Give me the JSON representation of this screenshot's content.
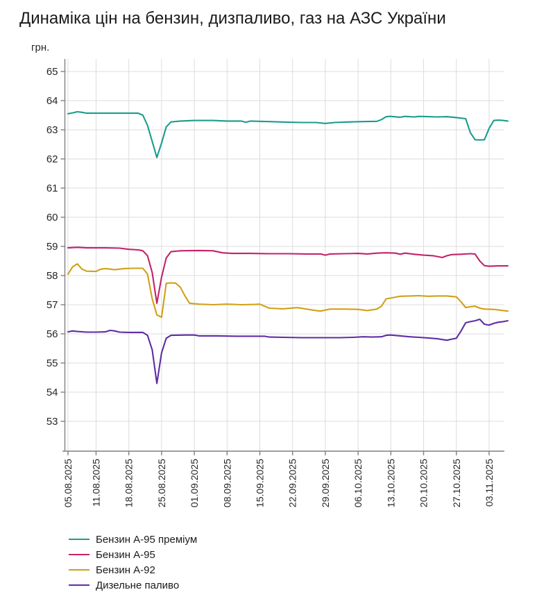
{
  "title": "Динаміка цін на бензин, дизпаливо, газ на АЗС України",
  "y_unit": "грн.",
  "colors": {
    "grid": "#dcdcdc",
    "axis": "#808080",
    "tick_text": "#262626",
    "title_text": "#1a1a1a"
  },
  "chart_data": {
    "type": "line",
    "title": "Динаміка цін на бензин, дизпаливо, газ на АЗС України",
    "xlabel": "",
    "ylabel": "грн.",
    "ylim": [
      52,
      65.5
    ],
    "x_domain_days": [
      0,
      94
    ],
    "x_unit": "days since 05.08.2025",
    "grid": true,
    "legend_position": "bottom-left",
    "y_ticks": [
      53,
      54,
      55,
      56,
      57,
      58,
      59,
      60,
      61,
      62,
      63,
      64,
      65
    ],
    "x_tick_days": [
      0,
      6,
      13,
      20,
      27,
      34,
      41,
      48,
      55,
      62,
      69,
      76,
      83,
      90
    ],
    "x_tick_labels": [
      "05.08.2025",
      "11.08.2025",
      "18.08.2025",
      "25.08.2025",
      "01.09.2025",
      "08.09.2025",
      "15.09.2025",
      "22.09.2025",
      "29.09.2025",
      "06.10.2025",
      "13.10.2025",
      "20.10.2025",
      "27.10.2025",
      "03.11.2025"
    ],
    "series": [
      {
        "id": "benzyn-a95-premium",
        "name": "Бензин А-95 преміум",
        "color": "#1a9c8c",
        "points": [
          [
            0,
            63.55
          ],
          [
            1,
            63.58
          ],
          [
            2,
            63.62
          ],
          [
            3,
            63.6
          ],
          [
            4,
            63.57
          ],
          [
            8,
            63.57
          ],
          [
            12,
            63.57
          ],
          [
            15,
            63.57
          ],
          [
            16,
            63.5
          ],
          [
            17,
            63.15
          ],
          [
            18,
            62.6
          ],
          [
            19,
            62.05
          ],
          [
            20,
            62.55
          ],
          [
            21,
            63.1
          ],
          [
            22,
            63.27
          ],
          [
            24,
            63.3
          ],
          [
            27,
            63.32
          ],
          [
            31,
            63.32
          ],
          [
            34,
            63.3
          ],
          [
            37,
            63.3
          ],
          [
            38,
            63.26
          ],
          [
            39,
            63.3
          ],
          [
            43,
            63.28
          ],
          [
            47,
            63.26
          ],
          [
            50,
            63.25
          ],
          [
            53,
            63.25
          ],
          [
            55,
            63.22
          ],
          [
            57,
            63.25
          ],
          [
            60,
            63.27
          ],
          [
            63,
            63.28
          ],
          [
            66,
            63.29
          ],
          [
            67,
            63.35
          ],
          [
            68,
            63.45
          ],
          [
            69,
            63.46
          ],
          [
            71,
            63.43
          ],
          [
            72,
            63.46
          ],
          [
            74,
            63.44
          ],
          [
            75,
            63.46
          ],
          [
            77,
            63.45
          ],
          [
            79,
            63.44
          ],
          [
            81,
            63.45
          ],
          [
            83,
            63.42
          ],
          [
            84,
            63.4
          ],
          [
            85,
            63.38
          ],
          [
            86,
            62.9
          ],
          [
            87,
            62.66
          ],
          [
            88,
            62.65
          ],
          [
            89,
            62.66
          ],
          [
            90,
            63.05
          ],
          [
            91,
            63.32
          ],
          [
            92,
            63.33
          ],
          [
            93,
            63.32
          ],
          [
            94,
            63.3
          ]
        ]
      },
      {
        "id": "benzyn-a95",
        "name": "Бензин А-95",
        "color": "#c22369",
        "points": [
          [
            0,
            58.95
          ],
          [
            2,
            58.97
          ],
          [
            4,
            58.95
          ],
          [
            8,
            58.95
          ],
          [
            11,
            58.94
          ],
          [
            13,
            58.9
          ],
          [
            15,
            58.88
          ],
          [
            16,
            58.85
          ],
          [
            17,
            58.68
          ],
          [
            18,
            58.1
          ],
          [
            19,
            57.05
          ],
          [
            20,
            57.95
          ],
          [
            21,
            58.6
          ],
          [
            22,
            58.82
          ],
          [
            24,
            58.85
          ],
          [
            28,
            58.86
          ],
          [
            31,
            58.85
          ],
          [
            33,
            58.78
          ],
          [
            35,
            58.76
          ],
          [
            39,
            58.76
          ],
          [
            43,
            58.75
          ],
          [
            47,
            58.75
          ],
          [
            51,
            58.74
          ],
          [
            54,
            58.74
          ],
          [
            55,
            58.7
          ],
          [
            56,
            58.74
          ],
          [
            59,
            58.75
          ],
          [
            62,
            58.76
          ],
          [
            64,
            58.74
          ],
          [
            66,
            58.77
          ],
          [
            68,
            58.78
          ],
          [
            70,
            58.77
          ],
          [
            71,
            58.73
          ],
          [
            72,
            58.77
          ],
          [
            74,
            58.73
          ],
          [
            76,
            58.7
          ],
          [
            78,
            58.68
          ],
          [
            80,
            58.62
          ],
          [
            81,
            58.68
          ],
          [
            82,
            58.72
          ],
          [
            84,
            58.73
          ],
          [
            86,
            58.75
          ],
          [
            87,
            58.74
          ],
          [
            88,
            58.5
          ],
          [
            89,
            58.34
          ],
          [
            90,
            58.32
          ],
          [
            92,
            58.33
          ],
          [
            94,
            58.33
          ]
        ]
      },
      {
        "id": "benzyn-a92",
        "name": "Бензин А-92",
        "color": "#d0a018",
        "points": [
          [
            0,
            58.05
          ],
          [
            1,
            58.3
          ],
          [
            2,
            58.4
          ],
          [
            3,
            58.22
          ],
          [
            4,
            58.15
          ],
          [
            6,
            58.14
          ],
          [
            7,
            58.22
          ],
          [
            8,
            58.24
          ],
          [
            10,
            58.2
          ],
          [
            12,
            58.24
          ],
          [
            14,
            58.25
          ],
          [
            16,
            58.25
          ],
          [
            17,
            58.05
          ],
          [
            18,
            57.2
          ],
          [
            19,
            56.65
          ],
          [
            20,
            56.57
          ],
          [
            21,
            57.73
          ],
          [
            22,
            57.75
          ],
          [
            23,
            57.74
          ],
          [
            24,
            57.6
          ],
          [
            25,
            57.3
          ],
          [
            26,
            57.05
          ],
          [
            28,
            57.02
          ],
          [
            31,
            57.0
          ],
          [
            34,
            57.02
          ],
          [
            37,
            57.0
          ],
          [
            40,
            57.01
          ],
          [
            41,
            57.02
          ],
          [
            42,
            56.95
          ],
          [
            43,
            56.88
          ],
          [
            46,
            56.86
          ],
          [
            49,
            56.9
          ],
          [
            51,
            56.85
          ],
          [
            53,
            56.8
          ],
          [
            54,
            56.78
          ],
          [
            56,
            56.85
          ],
          [
            59,
            56.85
          ],
          [
            62,
            56.84
          ],
          [
            64,
            56.8
          ],
          [
            66,
            56.85
          ],
          [
            67,
            56.95
          ],
          [
            68,
            57.2
          ],
          [
            70,
            57.26
          ],
          [
            71,
            57.29
          ],
          [
            73,
            57.3
          ],
          [
            75,
            57.31
          ],
          [
            77,
            57.29
          ],
          [
            79,
            57.3
          ],
          [
            81,
            57.3
          ],
          [
            83,
            57.27
          ],
          [
            84,
            57.1
          ],
          [
            85,
            56.9
          ],
          [
            86,
            56.93
          ],
          [
            87,
            56.95
          ],
          [
            88,
            56.88
          ],
          [
            89,
            56.85
          ],
          [
            91,
            56.84
          ],
          [
            93,
            56.8
          ],
          [
            94,
            56.78
          ]
        ]
      },
      {
        "id": "dyzelne-palyvo",
        "name": "Дизельне паливо",
        "color": "#5e2da3",
        "points": [
          [
            0,
            56.07
          ],
          [
            1,
            56.1
          ],
          [
            2,
            56.08
          ],
          [
            4,
            56.06
          ],
          [
            6,
            56.06
          ],
          [
            8,
            56.07
          ],
          [
            9,
            56.12
          ],
          [
            10,
            56.1
          ],
          [
            11,
            56.06
          ],
          [
            13,
            56.05
          ],
          [
            16,
            56.05
          ],
          [
            17,
            55.95
          ],
          [
            18,
            55.45
          ],
          [
            19,
            54.3
          ],
          [
            20,
            55.35
          ],
          [
            21,
            55.85
          ],
          [
            22,
            55.95
          ],
          [
            25,
            55.96
          ],
          [
            27,
            55.96
          ],
          [
            28,
            55.93
          ],
          [
            32,
            55.93
          ],
          [
            36,
            55.92
          ],
          [
            40,
            55.92
          ],
          [
            42,
            55.92
          ],
          [
            43,
            55.89
          ],
          [
            46,
            55.88
          ],
          [
            50,
            55.87
          ],
          [
            54,
            55.87
          ],
          [
            58,
            55.87
          ],
          [
            61,
            55.88
          ],
          [
            63,
            55.9
          ],
          [
            65,
            55.89
          ],
          [
            67,
            55.9
          ],
          [
            68,
            55.95
          ],
          [
            69,
            55.96
          ],
          [
            71,
            55.93
          ],
          [
            73,
            55.9
          ],
          [
            75,
            55.88
          ],
          [
            77,
            55.86
          ],
          [
            79,
            55.83
          ],
          [
            81,
            55.78
          ],
          [
            82,
            55.82
          ],
          [
            83,
            55.85
          ],
          [
            84,
            56.1
          ],
          [
            85,
            56.38
          ],
          [
            86,
            56.42
          ],
          [
            87,
            56.45
          ],
          [
            88,
            56.5
          ],
          [
            89,
            56.33
          ],
          [
            90,
            56.3
          ],
          [
            91,
            56.36
          ],
          [
            92,
            56.4
          ],
          [
            93,
            56.42
          ],
          [
            94,
            56.45
          ]
        ]
      }
    ]
  }
}
